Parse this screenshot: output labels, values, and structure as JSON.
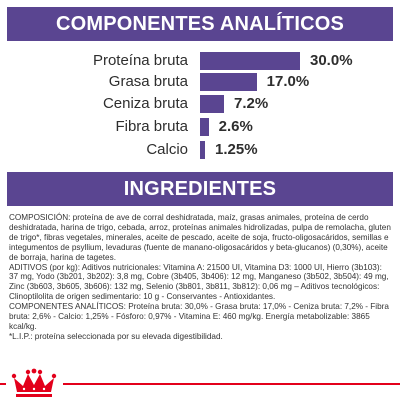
{
  "analytics": {
    "title": "COMPONENTES ANALÍTICOS",
    "rows": [
      {
        "label": "Proteína bruta",
        "value": "30.0%",
        "percent": 30.0
      },
      {
        "label": "Grasa bruta",
        "value": "17.0%",
        "percent": 17.0
      },
      {
        "label": "Ceniza bruta",
        "value": "7.2%",
        "percent": 7.2
      },
      {
        "label": "Fibra bruta",
        "value": "2.6%",
        "percent": 2.6
      },
      {
        "label": "Calcio",
        "value": "1.25%",
        "percent": 1.25
      }
    ]
  },
  "ingredients": {
    "title": "INGREDIENTES",
    "paragraphs": [
      "COMPOSICIÓN: proteína de ave de corral deshidratada, maíz, grasas animales, proteína de cerdo deshidratada, harina de trigo, cebada, arroz, proteínas animales hidrolizadas, pulpa de remolacha, gluten de trigo*, fibras vegetales, minerales, aceite de pescado, aceite de soja, fructo-oligosacáridos, semillas e integumentos de psyllium, levaduras (fuente de manano-oligosacáridos y beta-glucanos) (0,30%), aceite de borraja, harina de tagetes.",
      "ADITIVOS (por kg): Aditivos nutricionales: Vitamina A: 21500 UI, Vitamina D3: 1000 UI, Hierro (3b103): 37 mg, Yodo (3b201, 3b202): 3,8 mg, Cobre (3b405, 3b406): 12 mg, Manganeso (3b502, 3b504): 49 mg, Zinc (3b603, 3b605, 3b606): 132 mg, Selenio (3b801, 3b811, 3b812): 0,06 mg – Aditivos tecnológicos: Clinoptilolita de origen sedimentario: 10 g - Conservantes - Antioxidantes.",
      "COMPONENTES ANALÍTICOS: Proteína bruta: 30,0% - Grasa bruta: 17,0% - Ceniza bruta: 7,2% - Fibra bruta: 2,6% - Calcio: 1,25% - Fósforo: 0,97% - Vitamina E: 460 mg/kg. Energía metabolizable: 3865 kcal/kg.",
      "*L.I.P.: proteína seleccionada por su elevada digestibilidad."
    ]
  },
  "colors": {
    "accent": "#5a4591",
    "brand_red": "#e3001b"
  },
  "footer": {
    "logo_icon": "royal-canin-crown-icon"
  }
}
